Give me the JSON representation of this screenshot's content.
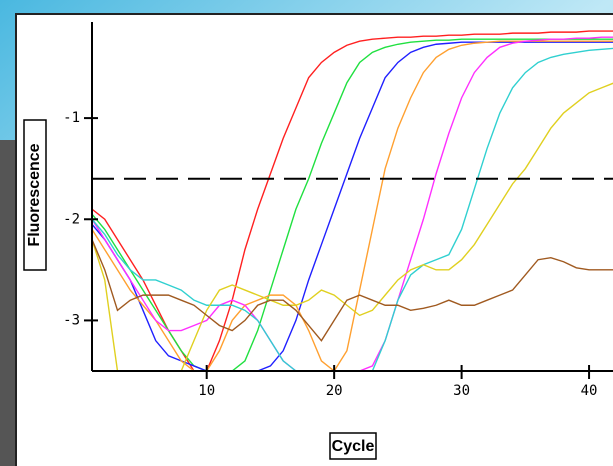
{
  "chart_data": {
    "type": "line",
    "x_label": "Cycle",
    "y_label": "Fluorescence",
    "x": [
      1,
      2,
      3,
      4,
      5,
      6,
      7,
      8,
      9,
      10,
      11,
      12,
      13,
      14,
      15,
      16,
      17,
      18,
      19,
      20,
      21,
      22,
      23,
      24,
      25,
      26,
      27,
      28,
      29,
      30,
      31,
      32,
      33,
      34,
      35,
      36,
      37,
      38,
      39,
      40,
      41,
      42
    ],
    "xlim": [
      1,
      41.8
    ],
    "xticks": [
      10,
      20,
      30,
      40
    ],
    "ylim": [
      -3.5,
      -0.05
    ],
    "yticks": [
      -1,
      -2,
      -3
    ],
    "threshold": -1.6,
    "series": [
      {
        "color": "#ff2020",
        "values": [
          -1.9,
          -2.0,
          -2.2,
          -2.4,
          -2.6,
          -2.85,
          -3.1,
          -3.3,
          -3.5,
          -3.5,
          -3.2,
          -2.8,
          -2.3,
          -1.9,
          -1.55,
          -1.2,
          -0.9,
          -0.6,
          -0.45,
          -0.35,
          -0.28,
          -0.24,
          -0.22,
          -0.21,
          -0.2,
          -0.2,
          -0.19,
          -0.19,
          -0.18,
          -0.18,
          -0.17,
          -0.17,
          -0.17,
          -0.16,
          -0.16,
          -0.16,
          -0.15,
          -0.15,
          -0.15,
          -0.14,
          -0.14,
          -0.14
        ]
      },
      {
        "color": "#20e040",
        "values": [
          -1.95,
          -2.1,
          -2.3,
          -2.5,
          -2.7,
          -2.9,
          -3.1,
          -3.3,
          -3.45,
          -3.5,
          -3.5,
          -3.5,
          -3.4,
          -3.1,
          -2.7,
          -2.3,
          -1.9,
          -1.6,
          -1.25,
          -0.95,
          -0.65,
          -0.45,
          -0.35,
          -0.3,
          -0.27,
          -0.25,
          -0.24,
          -0.23,
          -0.23,
          -0.22,
          -0.22,
          -0.22,
          -0.22,
          -0.22,
          -0.22,
          -0.22,
          -0.22,
          -0.22,
          -0.22,
          -0.22,
          -0.22,
          -0.22
        ]
      },
      {
        "color": "#2020ff",
        "values": [
          -2.05,
          -2.2,
          -2.4,
          -2.6,
          -2.9,
          -3.2,
          -3.35,
          -3.4,
          -3.45,
          -3.5,
          -3.5,
          -3.5,
          -3.5,
          -3.5,
          -3.45,
          -3.3,
          -3.0,
          -2.6,
          -2.25,
          -1.9,
          -1.55,
          -1.2,
          -0.9,
          -0.6,
          -0.45,
          -0.35,
          -0.3,
          -0.27,
          -0.26,
          -0.25,
          -0.25,
          -0.25,
          -0.25,
          -0.25,
          -0.25,
          -0.25,
          -0.25,
          -0.25,
          -0.25,
          -0.25,
          -0.25,
          -0.25
        ]
      },
      {
        "color": "#ffa030",
        "values": [
          -2.1,
          -2.3,
          -2.5,
          -2.7,
          -2.85,
          -3.0,
          -3.2,
          -3.4,
          -3.5,
          -3.5,
          -3.3,
          -3.0,
          -2.85,
          -2.8,
          -2.75,
          -2.75,
          -2.85,
          -3.1,
          -3.4,
          -3.5,
          -3.3,
          -2.7,
          -2.1,
          -1.5,
          -1.1,
          -0.8,
          -0.55,
          -0.4,
          -0.32,
          -0.28,
          -0.26,
          -0.25,
          -0.24,
          -0.24,
          -0.24,
          -0.24,
          -0.24,
          -0.24,
          -0.24,
          -0.24,
          -0.24,
          -0.24
        ]
      },
      {
        "color": "#ff30ff",
        "values": [
          -2.0,
          -2.2,
          -2.4,
          -2.6,
          -2.8,
          -3.0,
          -3.1,
          -3.1,
          -3.05,
          -3.0,
          -2.85,
          -2.8,
          -2.85,
          -3.0,
          -3.2,
          -3.4,
          -3.5,
          -3.5,
          -3.5,
          -3.5,
          -3.5,
          -3.5,
          -3.45,
          -3.2,
          -2.8,
          -2.4,
          -2.0,
          -1.55,
          -1.15,
          -0.8,
          -0.55,
          -0.4,
          -0.3,
          -0.26,
          -0.24,
          -0.23,
          -0.22,
          -0.22,
          -0.21,
          -0.21,
          -0.2,
          -0.2
        ]
      },
      {
        "color": "#30d0d0",
        "values": [
          -2.0,
          -2.15,
          -2.35,
          -2.5,
          -2.6,
          -2.6,
          -2.65,
          -2.7,
          -2.8,
          -2.85,
          -2.85,
          -2.85,
          -2.9,
          -3.0,
          -3.2,
          -3.4,
          -3.5,
          -3.5,
          -3.5,
          -3.5,
          -3.5,
          -3.5,
          -3.5,
          -3.2,
          -2.8,
          -2.55,
          -2.45,
          -2.4,
          -2.35,
          -2.1,
          -1.7,
          -1.3,
          -0.95,
          -0.7,
          -0.55,
          -0.45,
          -0.4,
          -0.37,
          -0.35,
          -0.33,
          -0.32,
          -0.31
        ]
      },
      {
        "color": "#e0d020",
        "values": [
          -2.2,
          -2.6,
          -3.5,
          -3.5,
          -3.5,
          -3.5,
          -3.5,
          -3.5,
          -3.2,
          -2.9,
          -2.7,
          -2.65,
          -2.7,
          -2.75,
          -2.8,
          -2.85,
          -2.85,
          -2.8,
          -2.7,
          -2.75,
          -2.85,
          -2.95,
          -2.9,
          -2.75,
          -2.6,
          -2.5,
          -2.45,
          -2.5,
          -2.5,
          -2.4,
          -2.25,
          -2.05,
          -1.85,
          -1.65,
          -1.5,
          -1.3,
          -1.1,
          -0.95,
          -0.85,
          -0.75,
          -0.7,
          -0.65
        ]
      },
      {
        "color": "#a05a20",
        "values": [
          -2.2,
          -2.5,
          -2.9,
          -2.8,
          -2.75,
          -2.75,
          -2.75,
          -2.8,
          -2.85,
          -2.95,
          -3.05,
          -3.1,
          -3.0,
          -2.85,
          -2.8,
          -2.8,
          -2.9,
          -3.05,
          -3.2,
          -3.0,
          -2.8,
          -2.75,
          -2.8,
          -2.85,
          -2.85,
          -2.9,
          -2.88,
          -2.85,
          -2.8,
          -2.85,
          -2.85,
          -2.8,
          -2.75,
          -2.7,
          -2.55,
          -2.4,
          -2.38,
          -2.42,
          -2.48,
          -2.5,
          -2.5,
          -2.5
        ]
      }
    ]
  }
}
